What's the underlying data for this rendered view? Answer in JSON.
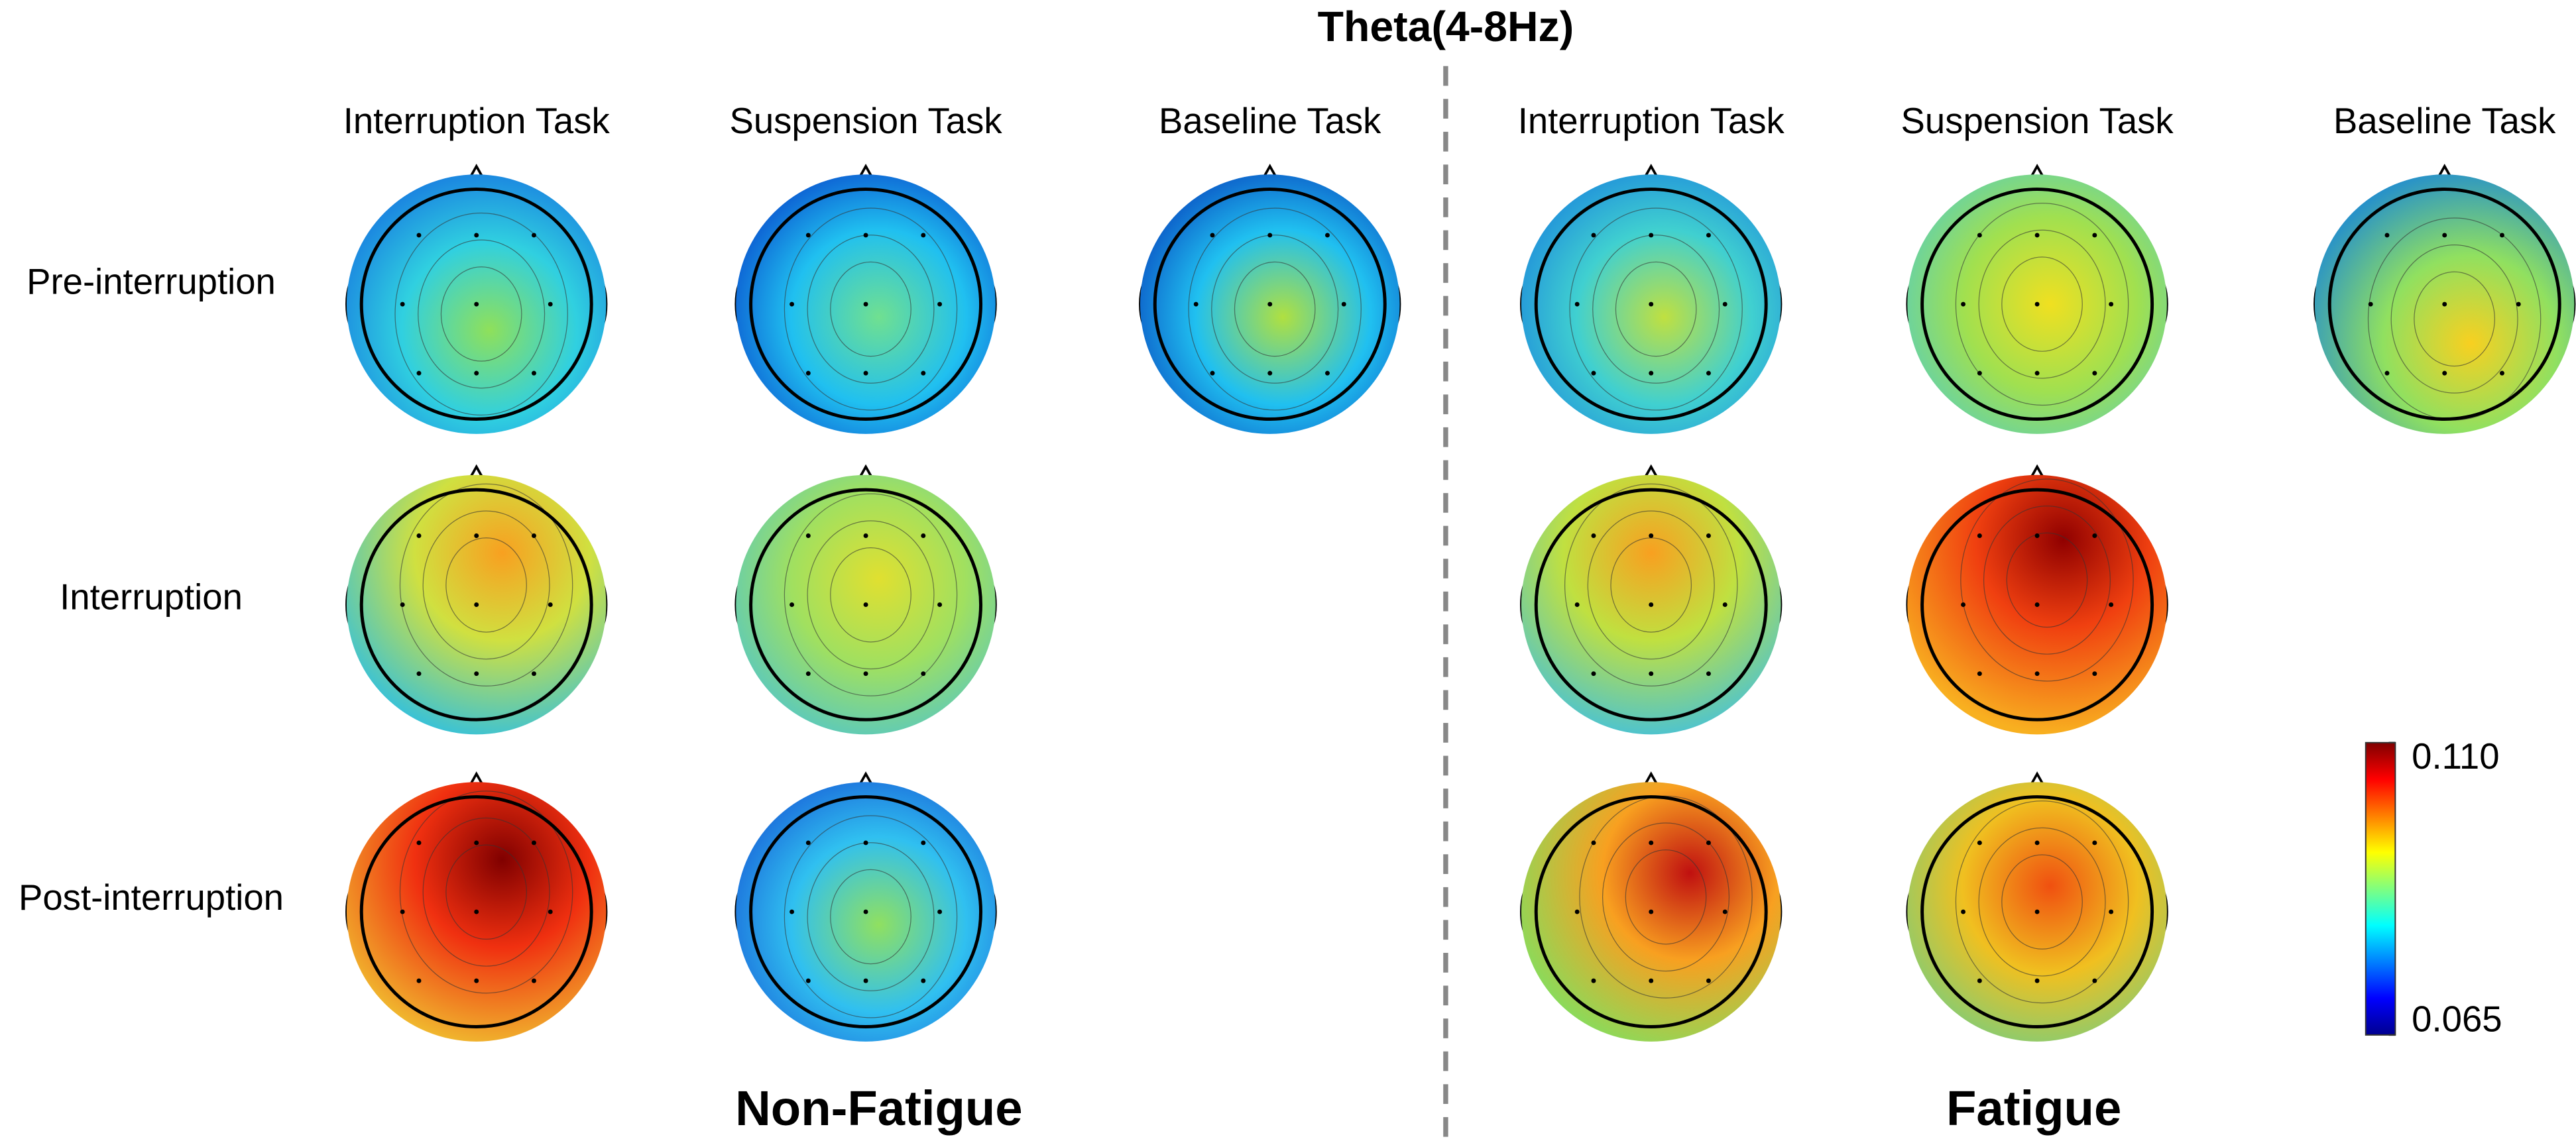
{
  "title": "Theta(4-8Hz)",
  "columns": [
    "Interruption Task",
    "Suspension Task",
    "Baseline Task",
    "Interruption Task",
    "Suspension Task",
    "Baseline Task"
  ],
  "rows": [
    "Pre-interruption",
    "Interruption",
    "Post-interruption"
  ],
  "groups": [
    "Non-Fatigue",
    "Fatigue"
  ],
  "colorbar": {
    "ylim": [
      0.065,
      0.11
    ],
    "yticks": [
      {
        "value": 0.11,
        "label": "0.110"
      },
      0.065
    ]
  }
}
